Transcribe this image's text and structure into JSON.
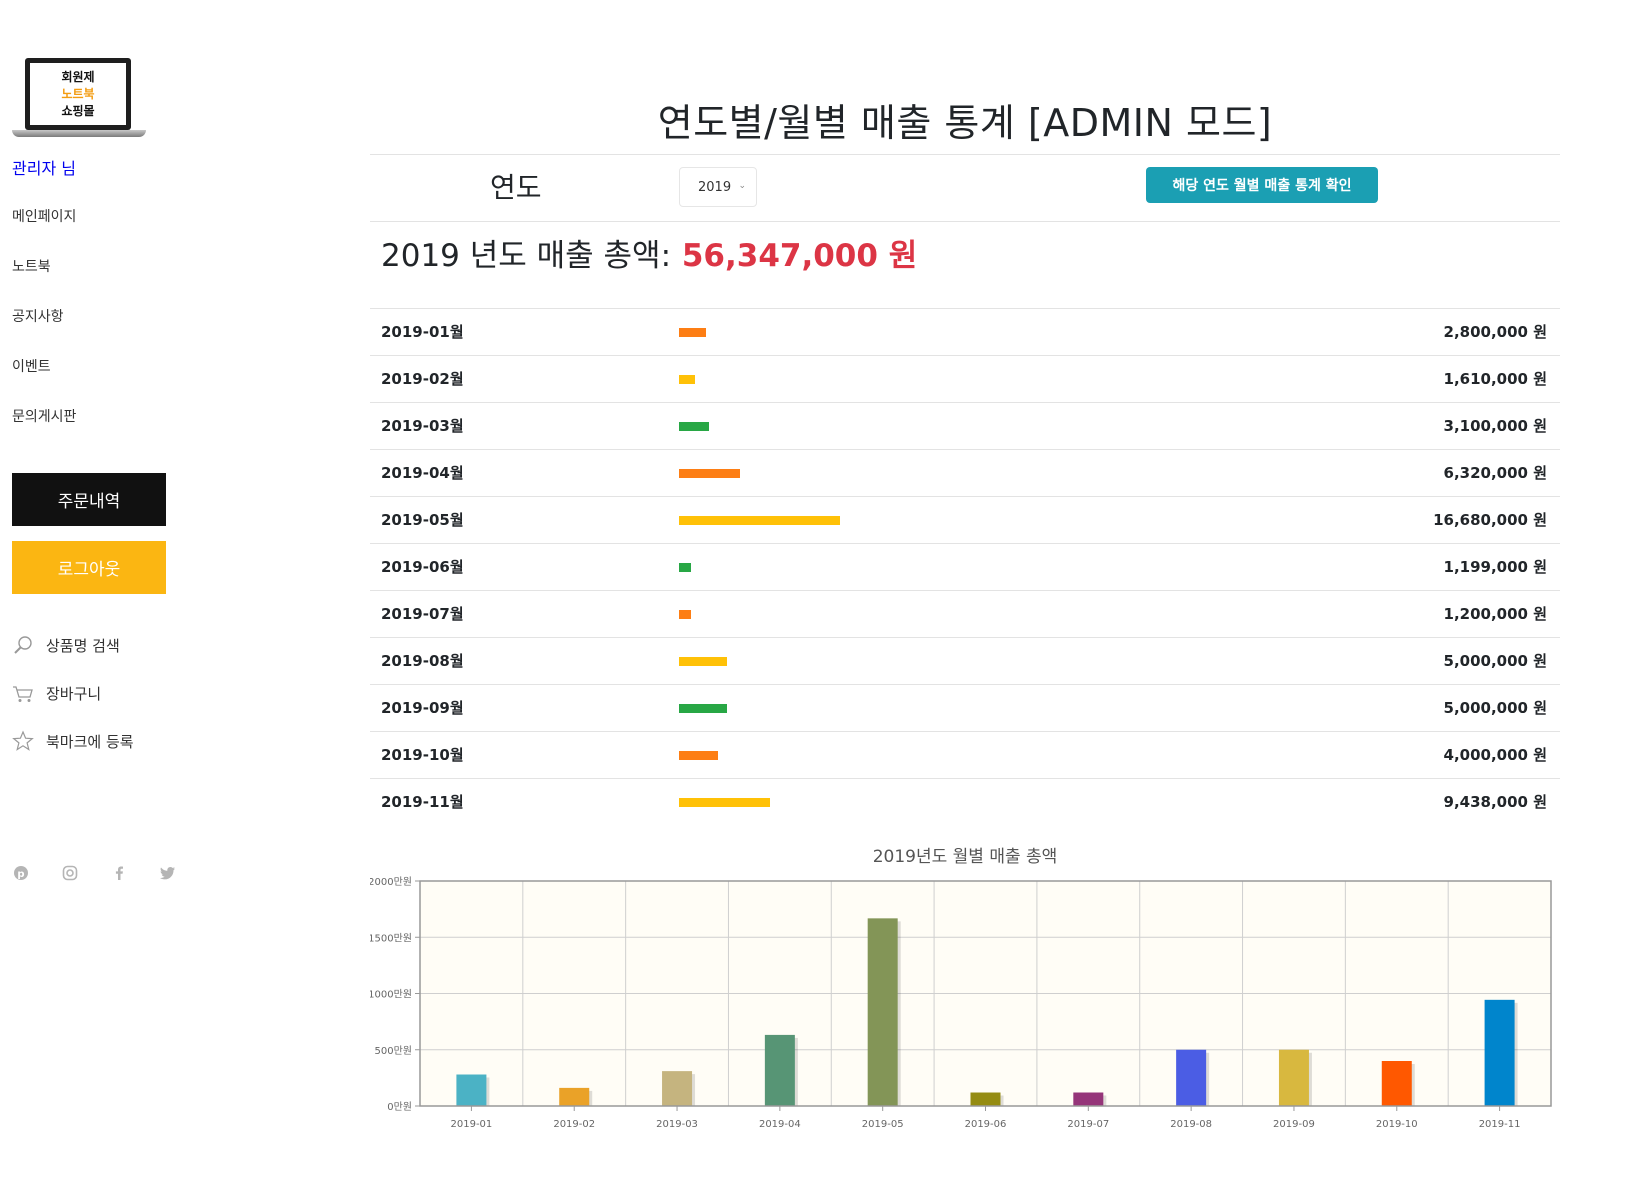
{
  "sidebar": {
    "logo": {
      "line1": "회원제",
      "line2": "노트북",
      "line3": "쇼핑몰"
    },
    "admin_name": "관리자 님",
    "nav": [
      "메인페이지",
      "노트북",
      "공지사항",
      "이벤트",
      "문의게시판"
    ],
    "orders_button": "주문내역",
    "logout_button": "로그아웃",
    "utilities": [
      {
        "label": "상품명 검색",
        "icon": "search-icon"
      },
      {
        "label": "장바구니",
        "icon": "cart-icon"
      },
      {
        "label": "북마크에 등록",
        "icon": "star-icon"
      }
    ],
    "social_icons": [
      "pinterest-icon",
      "instagram-icon",
      "facebook-icon",
      "twitter-icon"
    ]
  },
  "main": {
    "title": "연도별/월별 매출 통계 [ADMIN 모드]",
    "year_label": "연도",
    "year_selected": "2019",
    "check_button": "해당 연도 월별 매출 통계 확인",
    "total": {
      "prefix": "2019 년도 매출 총액:",
      "amount": "56,347,000 원"
    },
    "colors": {
      "total": "#dc3545",
      "button": "#1b9fb3",
      "logout": "#fbb612"
    },
    "months": [
      {
        "label": "2019-01월",
        "amount": "2,800,000 원",
        "value": 2800000,
        "color": "#fd7e14"
      },
      {
        "label": "2019-02월",
        "amount": "1,610,000 원",
        "value": 1610000,
        "color": "#ffc107"
      },
      {
        "label": "2019-03월",
        "amount": "3,100,000 원",
        "value": 3100000,
        "color": "#28a745"
      },
      {
        "label": "2019-04월",
        "amount": "6,320,000 원",
        "value": 6320000,
        "color": "#fd7e14"
      },
      {
        "label": "2019-05월",
        "amount": "16,680,000 원",
        "value": 16680000,
        "color": "#ffc107"
      },
      {
        "label": "2019-06월",
        "amount": "1,199,000 원",
        "value": 1199000,
        "color": "#28a745"
      },
      {
        "label": "2019-07월",
        "amount": "1,200,000 원",
        "value": 1200000,
        "color": "#fd7e14"
      },
      {
        "label": "2019-08월",
        "amount": "5,000,000 원",
        "value": 5000000,
        "color": "#ffc107"
      },
      {
        "label": "2019-09월",
        "amount": "5,000,000 원",
        "value": 5000000,
        "color": "#28a745"
      },
      {
        "label": "2019-10월",
        "amount": "4,000,000 원",
        "value": 4000000,
        "color": "#fd7e14"
      },
      {
        "label": "2019-11월",
        "amount": "9,438,000 원",
        "value": 9438000,
        "color": "#ffc107"
      }
    ]
  },
  "chart_data": {
    "type": "bar",
    "title": "2019년도 월별 매출 총액",
    "categories": [
      "2019-01",
      "2019-02",
      "2019-03",
      "2019-04",
      "2019-05",
      "2019-06",
      "2019-07",
      "2019-08",
      "2019-09",
      "2019-10",
      "2019-11"
    ],
    "values": [
      280,
      161,
      310,
      632,
      1668,
      119.9,
      120,
      500,
      500,
      400,
      943.8
    ],
    "colors": [
      "#4bb2c5",
      "#eaa228",
      "#c5b47f",
      "#579575",
      "#839557",
      "#958c12",
      "#953579",
      "#4b5de4",
      "#d8b83f",
      "#ff5800",
      "#0085cc"
    ],
    "yticks": [
      "0만원",
      "500만원",
      "1000만원",
      "1500만원",
      "2000만원"
    ],
    "ylim": [
      0,
      2000
    ],
    "grid": true,
    "background": "#fffdf6"
  }
}
